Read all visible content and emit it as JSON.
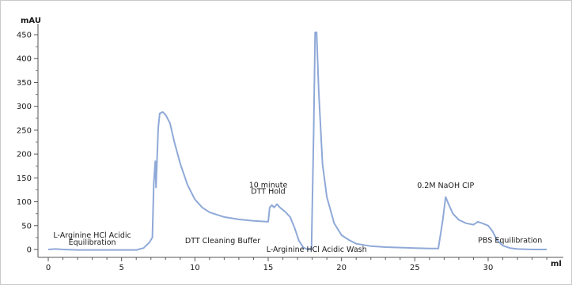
{
  "chart_data": {
    "type": "line",
    "y_unit": "mAU",
    "x_unit": "ml",
    "xlim": [
      0,
      34
    ],
    "ylim": [
      -10,
      460
    ],
    "x_ticks": [
      0,
      5,
      10,
      15,
      20,
      25,
      30
    ],
    "y_ticks": [
      0,
      50,
      100,
      150,
      200,
      250,
      300,
      350,
      400,
      450
    ],
    "grid": false,
    "line_color": "#8fa9d8",
    "series": [
      {
        "points": [
          [
            0,
            0
          ],
          [
            0.5,
            1
          ],
          [
            1,
            0
          ],
          [
            2,
            -1
          ],
          [
            3,
            -1
          ],
          [
            4,
            -1
          ],
          [
            5,
            -1
          ],
          [
            6,
            -1
          ],
          [
            6.5,
            3
          ],
          [
            6.9,
            15
          ],
          [
            7.1,
            25
          ],
          [
            7.2,
            140
          ],
          [
            7.3,
            185
          ],
          [
            7.35,
            130
          ],
          [
            7.5,
            255
          ],
          [
            7.6,
            285
          ],
          [
            7.8,
            288
          ],
          [
            8.0,
            282
          ],
          [
            8.3,
            265
          ],
          [
            8.6,
            225
          ],
          [
            9.0,
            180
          ],
          [
            9.5,
            135
          ],
          [
            10.0,
            105
          ],
          [
            10.5,
            88
          ],
          [
            11.0,
            78
          ],
          [
            12.0,
            68
          ],
          [
            13.0,
            63
          ],
          [
            14.0,
            60
          ],
          [
            15.0,
            58
          ],
          [
            15.1,
            88
          ],
          [
            15.25,
            93
          ],
          [
            15.4,
            88
          ],
          [
            15.6,
            95
          ],
          [
            15.8,
            88
          ],
          [
            16.2,
            78
          ],
          [
            16.5,
            68
          ],
          [
            16.8,
            45
          ],
          [
            17.1,
            18
          ],
          [
            17.4,
            4
          ],
          [
            17.7,
            0
          ],
          [
            17.95,
            0
          ],
          [
            18.1,
            250
          ],
          [
            18.2,
            455
          ],
          [
            18.3,
            455
          ],
          [
            18.45,
            330
          ],
          [
            18.7,
            180
          ],
          [
            19.0,
            110
          ],
          [
            19.5,
            55
          ],
          [
            20.0,
            30
          ],
          [
            20.5,
            20
          ],
          [
            21.0,
            12
          ],
          [
            22.0,
            7
          ],
          [
            23.0,
            5
          ],
          [
            24.0,
            4
          ],
          [
            25.0,
            3
          ],
          [
            26.0,
            2
          ],
          [
            26.6,
            2
          ],
          [
            26.9,
            60
          ],
          [
            27.1,
            110
          ],
          [
            27.3,
            95
          ],
          [
            27.6,
            75
          ],
          [
            28.0,
            62
          ],
          [
            28.5,
            55
          ],
          [
            29.0,
            52
          ],
          [
            29.3,
            58
          ],
          [
            29.6,
            55
          ],
          [
            30.0,
            50
          ],
          [
            30.3,
            38
          ],
          [
            30.6,
            20
          ],
          [
            31.0,
            8
          ],
          [
            31.5,
            3
          ],
          [
            32.0,
            1
          ],
          [
            33.0,
            0
          ],
          [
            34.0,
            0
          ]
        ]
      }
    ],
    "annotations": [
      {
        "text": "L-Arginine HCl Acidic",
        "x": 3.0,
        "y": 25
      },
      {
        "text": "Equilibration",
        "x": 3.0,
        "y": 10
      },
      {
        "text": "DTT Cleaning Buffer",
        "x": 11.9,
        "y": 13
      },
      {
        "text": "10 minute",
        "x": 15.0,
        "y": 130
      },
      {
        "text": "DTT Hold",
        "x": 15.0,
        "y": 117
      },
      {
        "text": "L-Arginine HCl Acidic Wash",
        "x": 18.3,
        "y": -5
      },
      {
        "text": "0.2M NaOH CIP",
        "x": 27.1,
        "y": 129
      },
      {
        "text": "PBS Equilibration",
        "x": 31.5,
        "y": 14
      }
    ]
  }
}
